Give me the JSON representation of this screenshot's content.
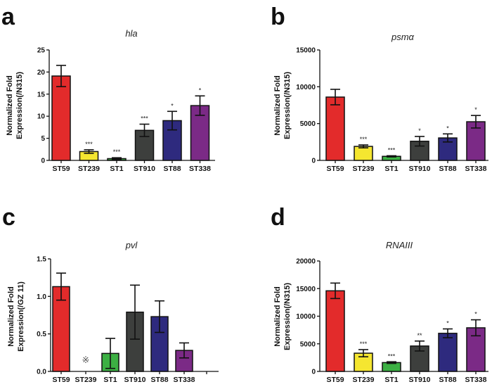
{
  "chart_data": [
    {
      "panel": "a",
      "type": "bar",
      "title": "hla",
      "xlabel": "",
      "ylabel": "Normalized Fold Expression(/N315)",
      "categories": [
        "ST59",
        "ST239",
        "ST1",
        "ST910",
        "ST88",
        "ST338"
      ],
      "values": [
        19.1,
        2.0,
        0.4,
        6.8,
        9.0,
        12.4
      ],
      "errors": [
        2.4,
        0.4,
        0.2,
        1.4,
        2.1,
        2.2
      ],
      "significance": [
        "",
        "***",
        "***",
        "***",
        "*",
        "*"
      ],
      "ylim": [
        0,
        25
      ],
      "yticks": [
        0,
        5,
        10,
        15,
        20,
        25
      ],
      "ytick_labels": [
        "0",
        "5",
        "10",
        "15",
        "20",
        "25"
      ],
      "grid": false,
      "colors": [
        "#e32b2b",
        "#f5e630",
        "#3cb043",
        "#3d3f3d",
        "#2e2a7e",
        "#7b2a86"
      ]
    },
    {
      "panel": "b",
      "type": "bar",
      "title": "psmα",
      "xlabel": "",
      "ylabel": "Normalized Fold Expression(/N315)",
      "categories": [
        "ST59",
        "ST239",
        "ST1",
        "ST910",
        "ST88",
        "ST338"
      ],
      "values": [
        8600,
        1900,
        550,
        2600,
        3050,
        5250
      ],
      "errors": [
        1050,
        200,
        80,
        650,
        550,
        850
      ],
      "significance": [
        "",
        "***",
        "***",
        "*",
        "*",
        "*"
      ],
      "ylim": [
        0,
        15000
      ],
      "yticks": [
        0,
        5000,
        10000,
        15000
      ],
      "ytick_labels": [
        "0",
        "5000",
        "10000",
        "15000"
      ],
      "grid": false,
      "colors": [
        "#e32b2b",
        "#f5e630",
        "#3cb043",
        "#3d3f3d",
        "#2e2a7e",
        "#7b2a86"
      ]
    },
    {
      "panel": "c",
      "type": "bar",
      "title": "pvl",
      "xlabel": "",
      "ylabel": "Normalized Fold Expression(/GZ 11)",
      "categories": [
        "ST59",
        "ST239",
        "ST1",
        "ST910",
        "ST88",
        "ST338"
      ],
      "values": [
        1.13,
        null,
        0.24,
        0.79,
        0.73,
        0.28
      ],
      "errors": [
        0.18,
        null,
        0.2,
        0.36,
        0.21,
        0.1
      ],
      "significance": [
        "",
        "",
        "",
        "",
        "",
        ""
      ],
      "not_detected_marker": "※",
      "ylim": [
        0,
        1.5
      ],
      "yticks": [
        0,
        0.5,
        1.0,
        1.5
      ],
      "ytick_labels": [
        "0.0",
        "0.5",
        "1.0",
        "1.5"
      ],
      "grid": false,
      "colors": [
        "#e32b2b",
        "#f5e630",
        "#3cb043",
        "#3d3f3d",
        "#2e2a7e",
        "#7b2a86"
      ]
    },
    {
      "panel": "d",
      "type": "bar",
      "title": "RNAIII",
      "xlabel": "",
      "ylabel": "Normalized Fold Expression(/N315)",
      "categories": [
        "ST59",
        "ST239",
        "ST1",
        "ST910",
        "ST88",
        "ST338"
      ],
      "values": [
        14600,
        3300,
        1600,
        4600,
        6900,
        7900
      ],
      "errors": [
        1400,
        650,
        150,
        900,
        800,
        1450
      ],
      "significance": [
        "",
        "***",
        "***",
        "**",
        "*",
        "*"
      ],
      "ylim": [
        0,
        20000
      ],
      "yticks": [
        0,
        5000,
        10000,
        15000,
        20000
      ],
      "ytick_labels": [
        "0",
        "5000",
        "10000",
        "15000",
        "20000"
      ],
      "grid": false,
      "colors": [
        "#e32b2b",
        "#f5e630",
        "#3cb043",
        "#3d3f3d",
        "#2e2a7e",
        "#7b2a86"
      ]
    }
  ],
  "ylabel_lines": {
    "a": [
      "Normalized Fold",
      "Expression(/N315)"
    ],
    "b": [
      "Normalized Fold",
      "Expression(/N315)"
    ],
    "c": [
      "Normalized Fold",
      "Expression(/GZ 11)"
    ],
    "d": [
      "Normalized Fold",
      "Expression(/N315)"
    ]
  }
}
